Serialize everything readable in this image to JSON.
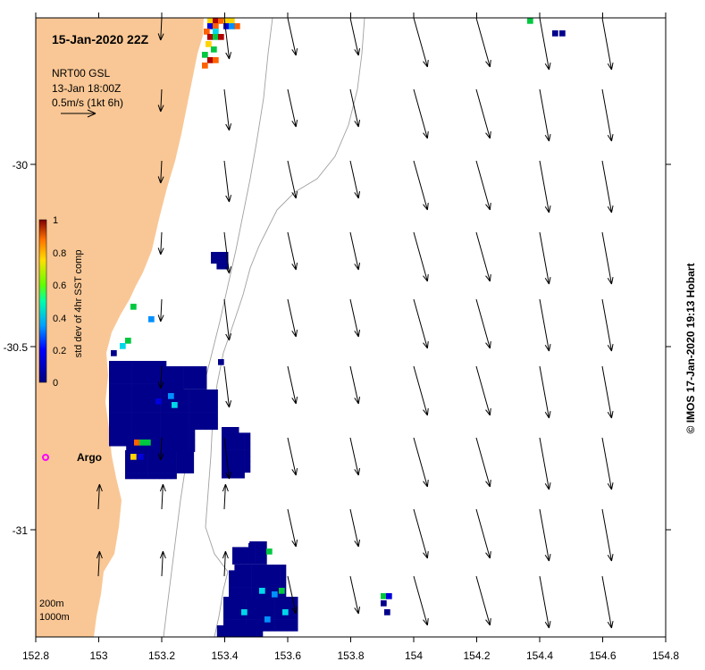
{
  "map": {
    "title": "15-Jan-2020 22Z",
    "product_lines": [
      "NRT00 GSL",
      "13-Jan 18:00Z",
      "0.5m/s (1kt 6h)"
    ],
    "credit": "© IMOS 17-Jan-2020 19:13 Hobart",
    "x_ticks": [
      "152.8",
      "153",
      "153.2",
      "153.4",
      "153.6",
      "153.8",
      "154",
      "154.2",
      "154.4",
      "154.6",
      "154.8"
    ],
    "y_ticks": [
      "-30",
      "-30.5",
      "-31"
    ],
    "colorbar": {
      "label": "std dev of 4hr SST comp",
      "ticks": [
        "0",
        "0.2",
        "0.4",
        "0.6",
        "0.8",
        "1"
      ],
      "min": 0,
      "max": 1
    },
    "float_label": "Argo",
    "depth_labels": [
      "200m",
      "1000m"
    ],
    "colors": {
      "land": "#f9c795",
      "sea": "#ffffff",
      "float_marker": "#ff00ff",
      "isobath": "#a0a0a0"
    }
  }
}
